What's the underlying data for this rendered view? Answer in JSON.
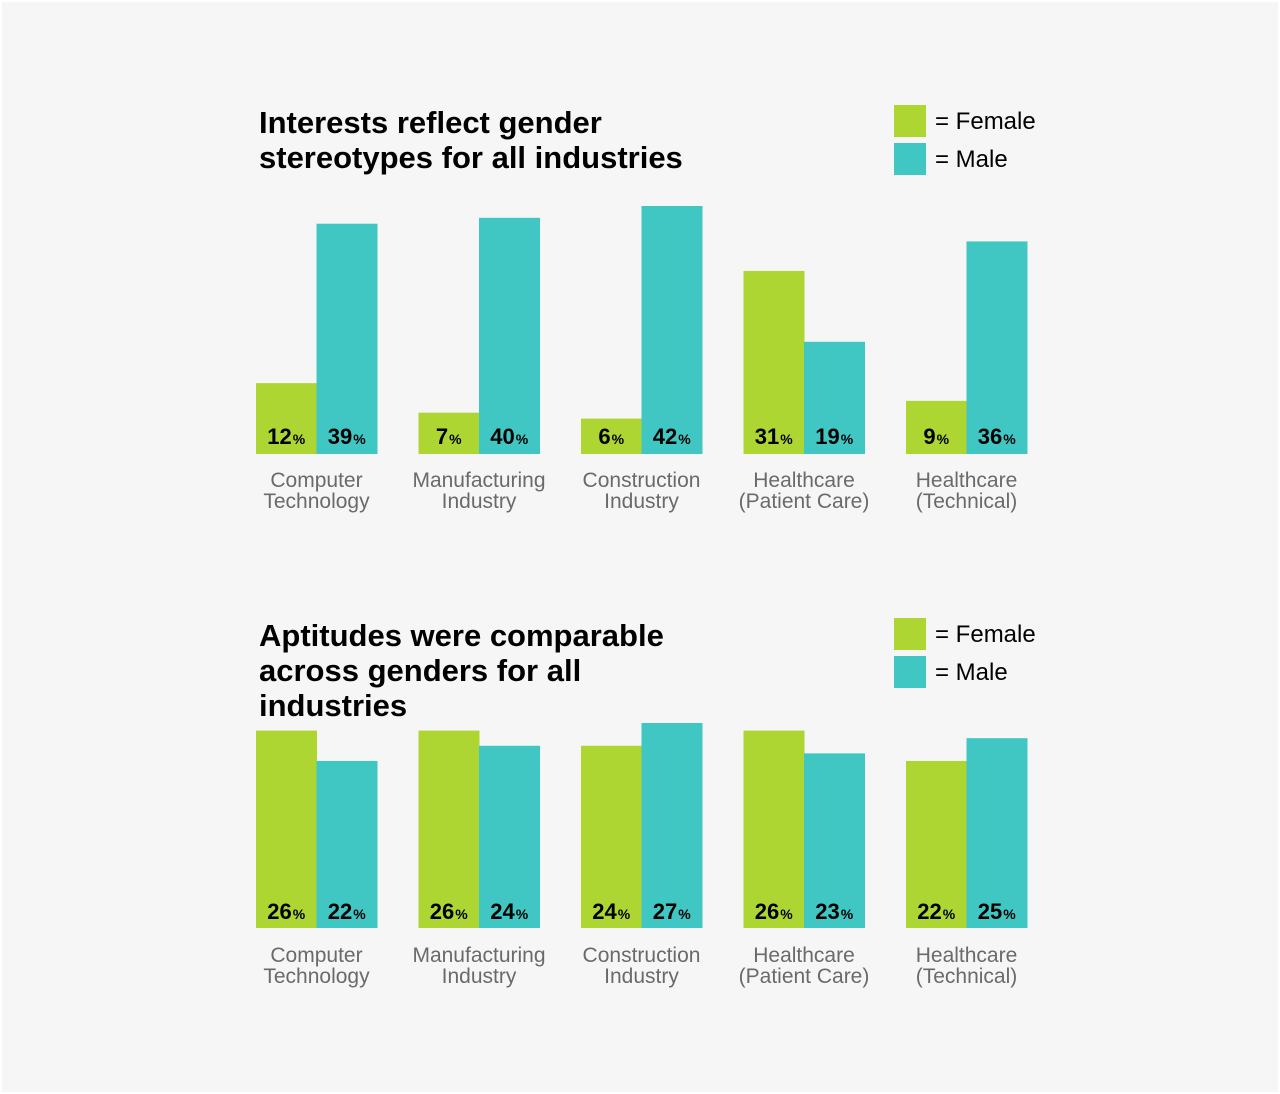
{
  "colors": {
    "female": "#add633",
    "male": "#40c6c3"
  },
  "chart_data": [
    {
      "type": "bar",
      "title": [
        "Interests reflect gender",
        "stereotypes for all industries"
      ],
      "legend": {
        "female": "= Female",
        "male": "= Male",
        "position": "top-right"
      },
      "categories": [
        [
          "Computer",
          "Technology"
        ],
        [
          "Manufacturing",
          "Industry"
        ],
        [
          "Construction",
          "Industry"
        ],
        [
          "Healthcare",
          "(Patient Care)"
        ],
        [
          "Healthcare",
          "(Technical)"
        ]
      ],
      "series": [
        {
          "name": "Female",
          "values": [
            12,
            7,
            6,
            31,
            9
          ]
        },
        {
          "name": "Male",
          "values": [
            39,
            40,
            42,
            19,
            36
          ]
        }
      ],
      "unit": "%",
      "ylim": [
        0,
        42
      ]
    },
    {
      "type": "bar",
      "title": [
        "Aptitudes were comparable",
        "across genders for all",
        "industries"
      ],
      "legend": {
        "female": "= Female",
        "male": "= Male",
        "position": "top-right"
      },
      "categories": [
        [
          "Computer",
          "Technology"
        ],
        [
          "Manufacturing",
          "Industry"
        ],
        [
          "Construction",
          "Industry"
        ],
        [
          "Healthcare",
          "(Patient Care)"
        ],
        [
          "Healthcare",
          "(Technical)"
        ]
      ],
      "series": [
        {
          "name": "Female",
          "values": [
            26,
            26,
            24,
            26,
            22
          ]
        },
        {
          "name": "Male",
          "values": [
            22,
            24,
            27,
            23,
            25
          ]
        }
      ],
      "unit": "%",
      "ylim": [
        0,
        27
      ]
    }
  ]
}
